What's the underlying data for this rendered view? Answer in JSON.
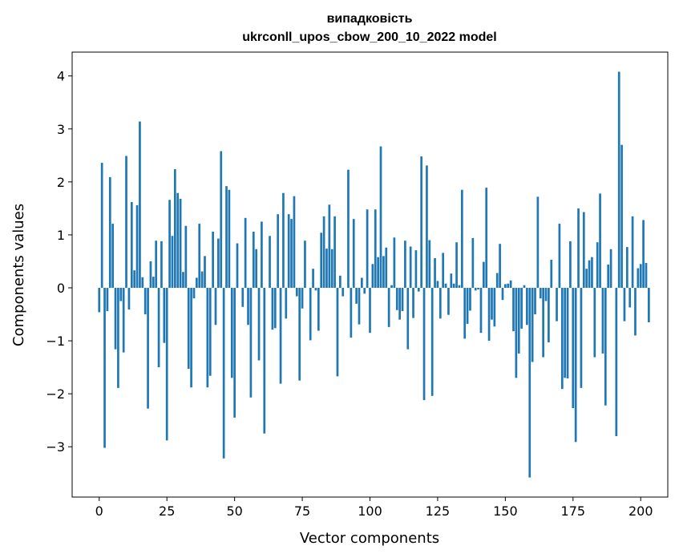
{
  "chart_data": {
    "type": "bar",
    "title": "випадковість",
    "subtitle": "ukrconll_upos_cbow_200_10_2022 model",
    "xlabel": "Vector components",
    "ylabel": "Components values",
    "xlim": [
      -10,
      210
    ],
    "ylim": [
      -3.95,
      4.45
    ],
    "xticks": [
      0,
      25,
      50,
      75,
      100,
      125,
      150,
      175,
      200
    ],
    "yticks": [
      -3,
      -2,
      -1,
      0,
      1,
      2,
      3,
      4
    ],
    "ytick_labels": [
      "−3",
      "−2",
      "−1",
      "0",
      "1",
      "2",
      "3",
      "4"
    ],
    "grid": false,
    "bar_color": "#1f77b4",
    "values": [
      -0.46,
      2.36,
      -3.02,
      -0.44,
      2.09,
      1.21,
      -1.16,
      -1.89,
      -0.25,
      -1.22,
      2.49,
      -0.41,
      1.62,
      0.33,
      1.56,
      3.14,
      0.2,
      -0.5,
      -2.28,
      0.5,
      0.21,
      0.89,
      -1.5,
      0.88,
      -1.04,
      -2.88,
      1.66,
      0.98,
      2.24,
      1.79,
      1.68,
      0.3,
      1.17,
      -1.53,
      -1.88,
      -0.2,
      0.19,
      1.21,
      0.31,
      0.6,
      -1.88,
      -1.66,
      1.06,
      -0.7,
      0.93,
      2.58,
      -3.22,
      1.92,
      1.85,
      -1.7,
      -2.45,
      0.84,
      0.0,
      -0.36,
      1.32,
      -0.7,
      -2.07,
      1.06,
      0.73,
      -1.37,
      1.25,
      -2.75,
      0.0,
      0.98,
      -0.79,
      -0.76,
      1.39,
      -1.81,
      1.79,
      -0.58,
      1.39,
      1.3,
      1.73,
      -0.16,
      -1.75,
      -0.39,
      0.89,
      0.0,
      -0.99,
      0.36,
      -0.05,
      -0.81,
      1.04,
      1.35,
      0.74,
      1.57,
      0.73,
      1.35,
      -1.67,
      0.23,
      -0.16,
      0.0,
      2.23,
      -0.94,
      1.3,
      -0.3,
      -0.69,
      0.19,
      -0.11,
      1.48,
      -0.85,
      0.45,
      1.48,
      0.58,
      2.67,
      0.6,
      0.76,
      -0.74,
      0.05,
      0.95,
      -0.42,
      -0.6,
      -0.44,
      0.89,
      -1.16,
      0.78,
      -0.57,
      0.71,
      -0.07,
      2.48,
      -2.12,
      2.31,
      0.9,
      -2.04,
      0.56,
      0.13,
      -0.58,
      0.66,
      0.08,
      -0.51,
      0.27,
      0.08,
      0.86,
      0.05,
      1.85,
      -0.96,
      -0.68,
      -0.43,
      0.94,
      -0.05,
      -0.03,
      -0.85,
      0.49,
      1.89,
      -1.0,
      -0.6,
      -0.73,
      0.28,
      0.83,
      -0.23,
      0.07,
      0.08,
      0.14,
      -0.82,
      -1.7,
      -1.24,
      -0.77,
      0.05,
      -0.7,
      -3.58,
      -1.4,
      -0.5,
      1.72,
      -0.2,
      -1.31,
      -0.25,
      -1.03,
      0.53,
      0.0,
      -0.63,
      1.21,
      -1.91,
      -1.7,
      -1.71,
      0.88,
      -2.27,
      -2.91,
      1.5,
      -1.89,
      1.43,
      0.36,
      0.52,
      0.58,
      -1.31,
      0.86,
      1.78,
      -1.24,
      -2.22,
      0.44,
      0.73,
      0.0,
      -2.8,
      4.08,
      2.7,
      -0.63,
      0.77,
      -0.37,
      1.35,
      -0.9,
      0.37,
      0.45,
      1.28,
      0.47,
      -0.65
    ]
  }
}
